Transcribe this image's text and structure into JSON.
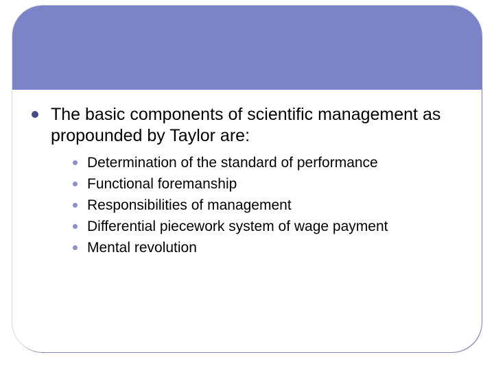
{
  "colors": {
    "band": "#7b84c6",
    "card_shadow": "#9aa0d0",
    "l1_bullet": "#444a87",
    "l2_bullet": "#8a90c9",
    "text": "#000000",
    "background": "#ffffff"
  },
  "layout": {
    "slide_width": 720,
    "slide_height": 540,
    "card_border_radius": 44,
    "header_band_height": 123
  },
  "typography": {
    "l1_fontsize": 25,
    "l2_fontsize": 21,
    "font_family": "Arial"
  },
  "main": {
    "text": "The basic components of scientific management as propounded by Taylor are:",
    "items": [
      "Determination of the standard of performance",
      "Functional foremanship",
      "Responsibilities of management",
      "Differential piecework system of wage payment",
      "Mental revolution"
    ]
  }
}
